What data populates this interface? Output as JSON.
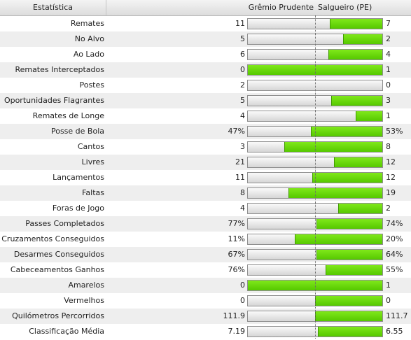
{
  "header": {
    "stat_col": "Estatística",
    "home_team": "Grêmio Prudente",
    "away_team": "Salgueiro (PE)"
  },
  "colors": {
    "bar_fill": "#66d60a",
    "bar_empty": "#e6e6e6",
    "row_alt": "#eeeeee"
  },
  "rows": [
    {
      "label": "Remates",
      "home": "11",
      "away": "7",
      "away_share": 0.39
    },
    {
      "label": "No Alvo",
      "home": "5",
      "away": "2",
      "away_share": 0.29
    },
    {
      "label": "Ao Lado",
      "home": "6",
      "away": "4",
      "away_share": 0.4
    },
    {
      "label": "Remates Interceptados",
      "home": "0",
      "away": "1",
      "away_share": 1.0
    },
    {
      "label": "Postes",
      "home": "2",
      "away": "0",
      "away_share": 0.0
    },
    {
      "label": "Oportunidades Flagrantes",
      "home": "5",
      "away": "3",
      "away_share": 0.38
    },
    {
      "label": "Remates de Longe",
      "home": "4",
      "away": "1",
      "away_share": 0.2
    },
    {
      "label": "Posse de Bola",
      "home": "47%",
      "away": "53%",
      "away_share": 0.53
    },
    {
      "label": "Cantos",
      "home": "3",
      "away": "8",
      "away_share": 0.73
    },
    {
      "label": "Livres",
      "home": "21",
      "away": "12",
      "away_share": 0.36
    },
    {
      "label": "Lançamentos",
      "home": "11",
      "away": "12",
      "away_share": 0.52
    },
    {
      "label": "Faltas",
      "home": "8",
      "away": "19",
      "away_share": 0.7
    },
    {
      "label": "Foras de Jogo",
      "home": "4",
      "away": "2",
      "away_share": 0.33
    },
    {
      "label": "Passes Completados",
      "home": "77%",
      "away": "74%",
      "away_share": 0.49
    },
    {
      "label": "Cruzamentos Conseguidos",
      "home": "11%",
      "away": "20%",
      "away_share": 0.65
    },
    {
      "label": "Desarmes Conseguidos",
      "home": "67%",
      "away": "64%",
      "away_share": 0.49
    },
    {
      "label": "Cabeceamentos Ganhos",
      "home": "76%",
      "away": "55%",
      "away_share": 0.42
    },
    {
      "label": "Amarelos",
      "home": "0",
      "away": "1",
      "away_share": 1.0
    },
    {
      "label": "Vermelhos",
      "home": "0",
      "away": "0",
      "away_share": 0.5
    },
    {
      "label": "Quilómetros Percorridos",
      "home": "111.9",
      "away": "111.7",
      "away_share": 0.5
    },
    {
      "label": "Classificação Média",
      "home": "7.19",
      "away": "6.55",
      "away_share": 0.48
    }
  ]
}
